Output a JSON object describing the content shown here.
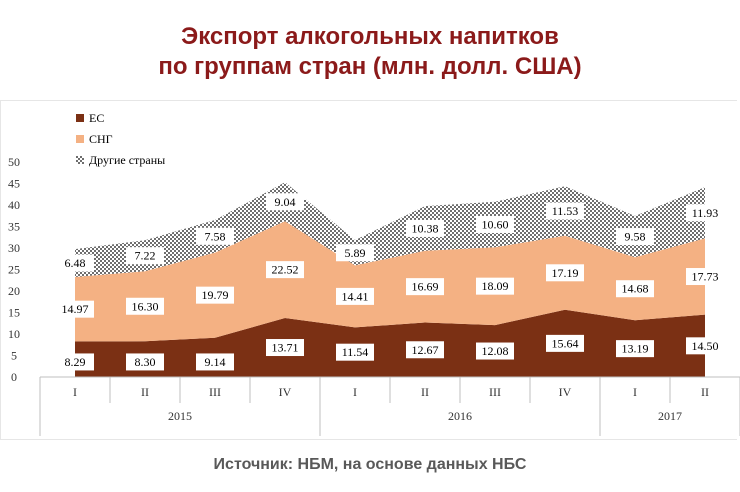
{
  "header": {
    "title_line1": "Экспорт алкогольных напитков",
    "title_line2": "по группам стран (млн. долл. США)"
  },
  "footer": {
    "source": "Источник: НБМ, на основе данных НБС"
  },
  "chart_data": {
    "type": "area",
    "stacked": true,
    "categories": [
      "I",
      "II",
      "III",
      "IV",
      "I",
      "II",
      "III",
      "IV",
      "I",
      "II"
    ],
    "year_groups": [
      {
        "label": "2015",
        "count": 4
      },
      {
        "label": "2016",
        "count": 4
      },
      {
        "label": "2017",
        "count": 2
      }
    ],
    "series": [
      {
        "name": "ЕС",
        "color": "#7b3014",
        "values": [
          8.29,
          8.3,
          9.14,
          13.71,
          11.54,
          12.67,
          12.08,
          15.64,
          13.19,
          14.5
        ]
      },
      {
        "name": "СНГ",
        "color": "#f4b183",
        "values": [
          14.97,
          16.3,
          19.79,
          22.52,
          14.41,
          16.69,
          18.09,
          17.19,
          14.68,
          17.73
        ]
      },
      {
        "name": "Другие страны",
        "color": "#bfbfbf",
        "pattern": "checker",
        "values": [
          6.48,
          7.22,
          7.58,
          9.04,
          5.89,
          10.38,
          10.6,
          11.53,
          9.58,
          11.93
        ]
      }
    ],
    "ylim": [
      0,
      50
    ],
    "yticks": [
      0,
      5,
      10,
      15,
      20,
      25,
      30,
      35,
      40,
      45,
      50
    ],
    "legend_position": "top-left",
    "data_labels": true,
    "grid": false
  }
}
